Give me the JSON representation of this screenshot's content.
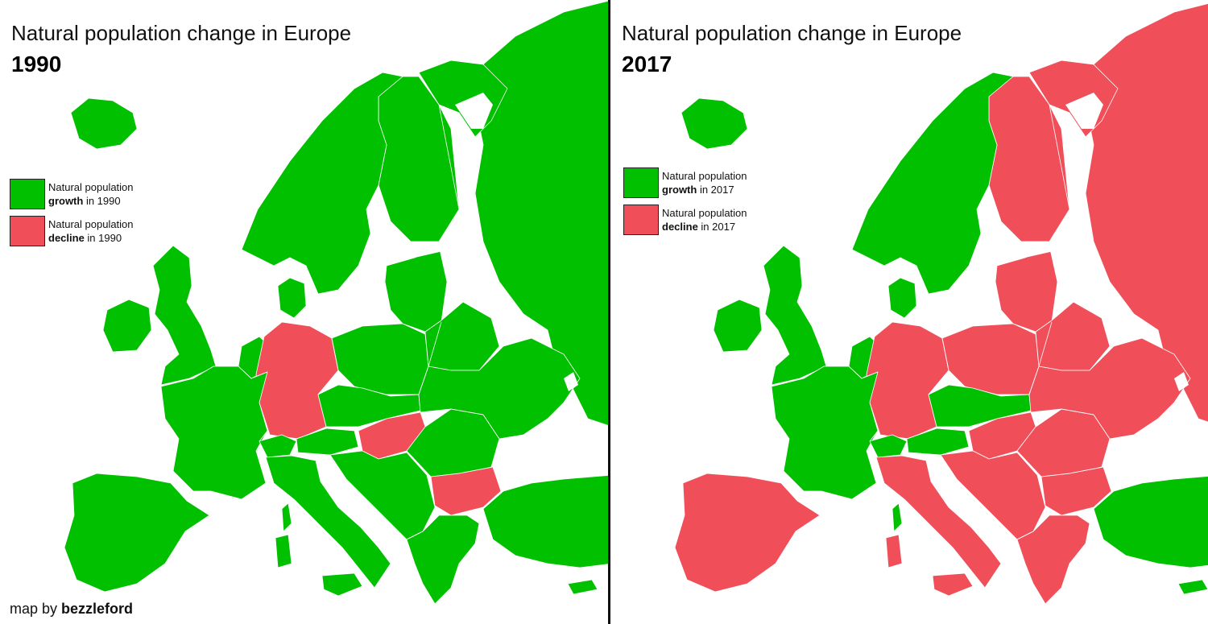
{
  "colors": {
    "growth": "#00c000",
    "decline": "#f04f5a",
    "sea": "#ffffff",
    "border": "#ffffff"
  },
  "maps": [
    {
      "title": "Natural population change in Europe",
      "year": "1990",
      "legend": [
        {
          "line1": "Natural population",
          "bold": "growth",
          "rest": " in 1990",
          "color": "#00c000"
        },
        {
          "line1": "Natural population",
          "bold": "decline",
          "rest": " in 1990",
          "color": "#f04f5a"
        }
      ],
      "regions": {
        "iceland": "growth",
        "ireland": "growth",
        "britain": "growth",
        "iberia": "growth",
        "france": "growth",
        "benelux": "growth",
        "denmark": "growth",
        "scandinavia": "growth",
        "finland": "growth",
        "germany": "decline",
        "switzerland": "growth",
        "austria": "growth",
        "italy": "growth",
        "sardinia": "growth",
        "corsica": "growth",
        "sicily": "growth",
        "poland": "growth",
        "czechoslovakia": "growth",
        "hungary": "decline",
        "yugoslavia": "growth",
        "romania": "growth",
        "bulgaria": "decline",
        "greece": "growth",
        "baltics": "growth",
        "belarus": "growth",
        "ukraine": "growth",
        "russia": "growth",
        "turkey": "growth",
        "cyprus": "growth"
      }
    },
    {
      "title": "Natural population change in Europe",
      "year": "2017",
      "legend": [
        {
          "line1": "Natural population",
          "bold": "growth",
          "rest": " in 2017",
          "color": "#00c000"
        },
        {
          "line1": "Natural population",
          "bold": "decline",
          "rest": " in 2017",
          "color": "#f04f5a"
        }
      ],
      "regions": {
        "iceland": "growth",
        "ireland": "growth",
        "britain": "growth",
        "iberia": "decline",
        "france": "growth",
        "benelux": "growth",
        "denmark": "growth",
        "scandinavia": "growth",
        "finland": "decline",
        "germany": "decline",
        "switzerland": "growth",
        "austria": "growth",
        "italy": "decline",
        "sardinia": "decline",
        "corsica": "growth",
        "sicily": "decline",
        "poland": "decline",
        "czechoslovakia": "growth",
        "hungary": "decline",
        "yugoslavia": "decline",
        "romania": "decline",
        "bulgaria": "decline",
        "greece": "decline",
        "baltics": "decline",
        "belarus": "decline",
        "ukraine": "decline",
        "russia": "decline",
        "turkey": "growth",
        "cyprus": "growth"
      }
    }
  ],
  "credit": {
    "prefix": "map by ",
    "author": "bezzleford"
  }
}
